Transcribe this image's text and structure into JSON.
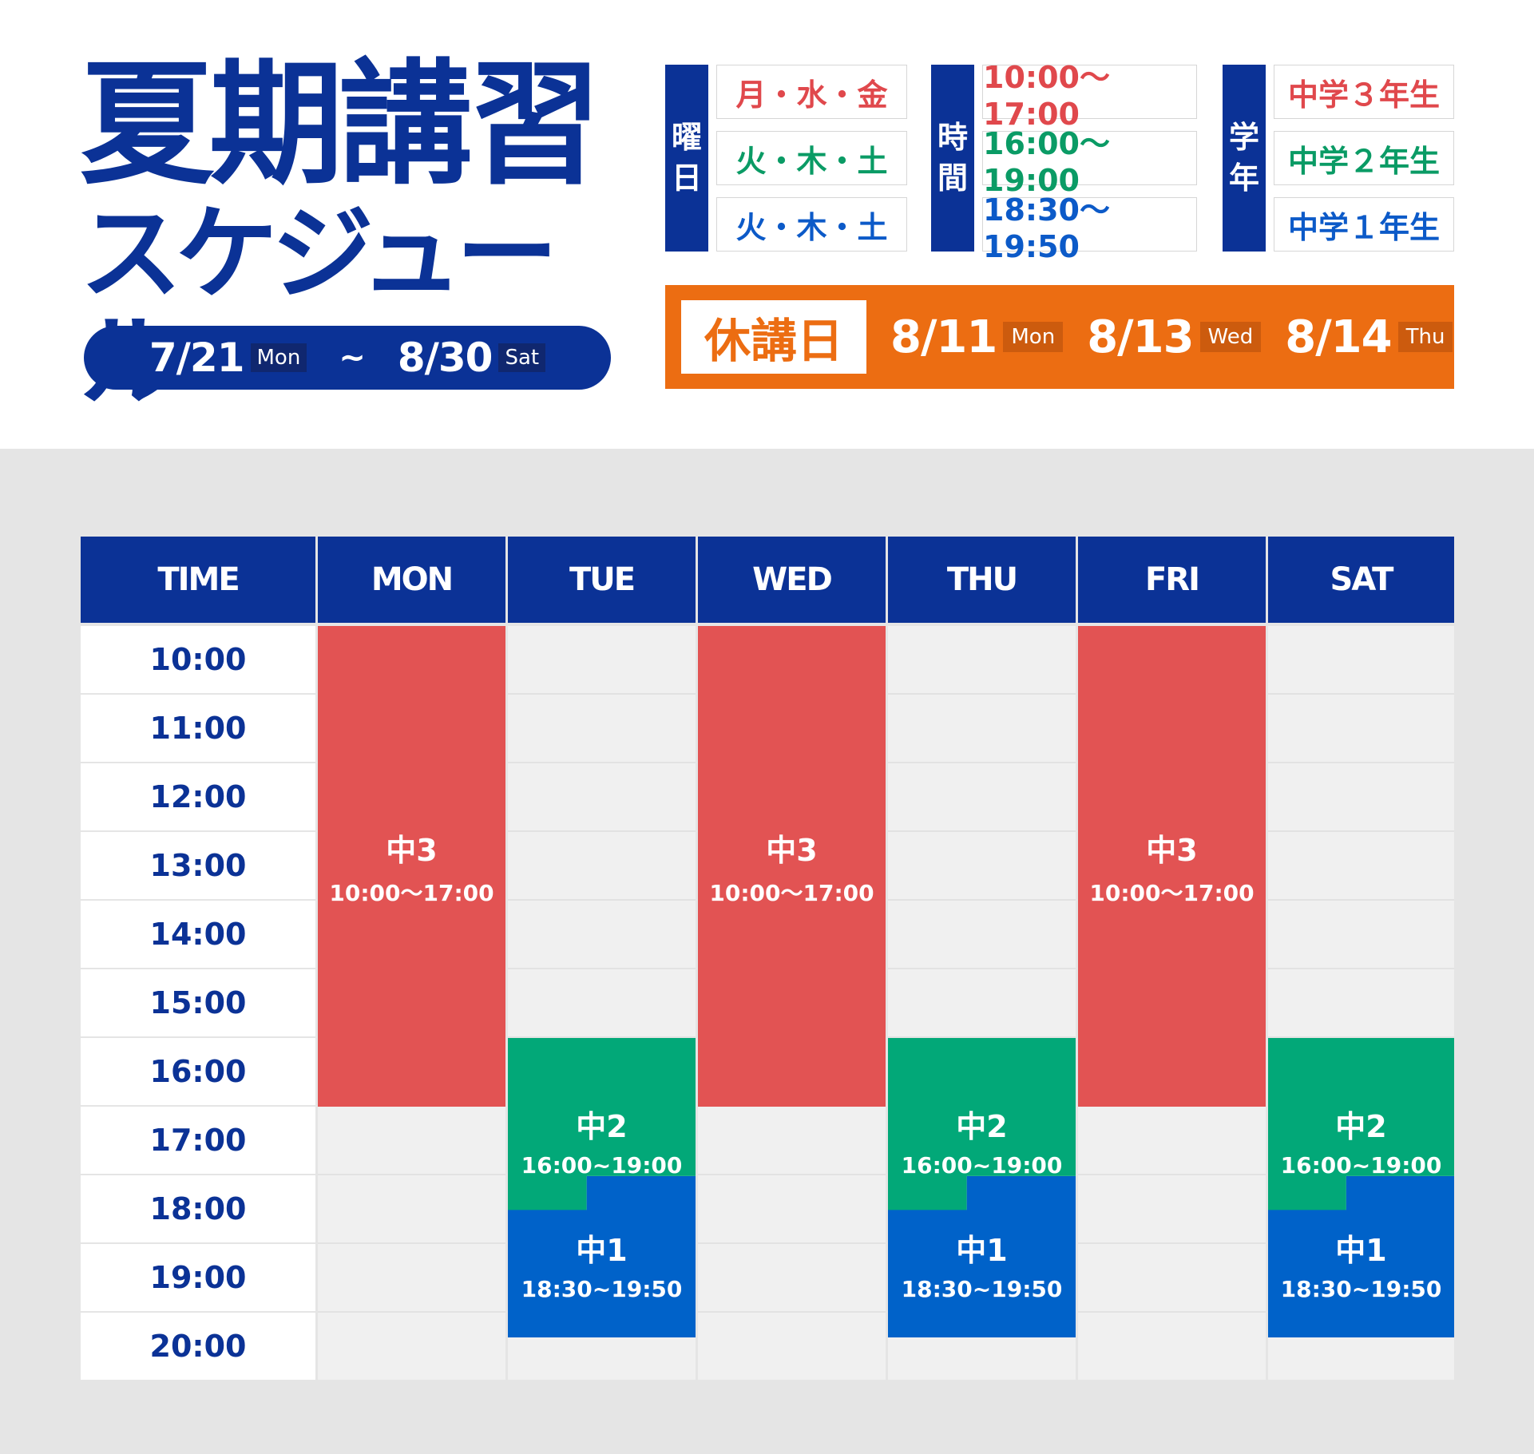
{
  "header": {
    "title_line1": "夏期講習",
    "title_line2": "スケジュール",
    "period": {
      "start_date": "7/21",
      "start_day": "Mon",
      "separator": "~",
      "end_date": "8/30",
      "end_day": "Sat"
    }
  },
  "legend": {
    "weekday_label": [
      "曜",
      "日"
    ],
    "time_label": [
      "時",
      "間"
    ],
    "grade_label": [
      "学",
      "年"
    ],
    "weekdays": [
      "月・水・金",
      "火・木・土",
      "火・木・土"
    ],
    "times": [
      "10:00〜17:00",
      "16:00〜19:00",
      "18:30〜19:50"
    ],
    "grades": [
      "中学３年生",
      "中学２年生",
      "中学１年生"
    ]
  },
  "holidays": {
    "label": "休講日",
    "days": [
      {
        "date": "8/11",
        "day": "Mon"
      },
      {
        "date": "8/13",
        "day": "Wed"
      },
      {
        "date": "8/14",
        "day": "Thu"
      }
    ]
  },
  "table": {
    "headers": [
      "TIME",
      "MON",
      "TUE",
      "WED",
      "THU",
      "FRI",
      "SAT"
    ],
    "times": [
      "10:00",
      "11:00",
      "12:00",
      "13:00",
      "14:00",
      "15:00",
      "16:00",
      "17:00",
      "18:00",
      "19:00",
      "20:00"
    ],
    "blocks": {
      "chu3": {
        "grade": "中3",
        "time": "10:00〜17:00"
      },
      "chu2": {
        "grade": "中2",
        "time": "16:00~19:00"
      },
      "chu1": {
        "grade": "中1",
        "time": "18:30~19:50"
      }
    }
  },
  "colors": {
    "navy": "#0b3296",
    "chu3": "#e25353",
    "chu2": "#02a878",
    "chu1": "#0062c9",
    "holiday": "#ec6d12"
  }
}
